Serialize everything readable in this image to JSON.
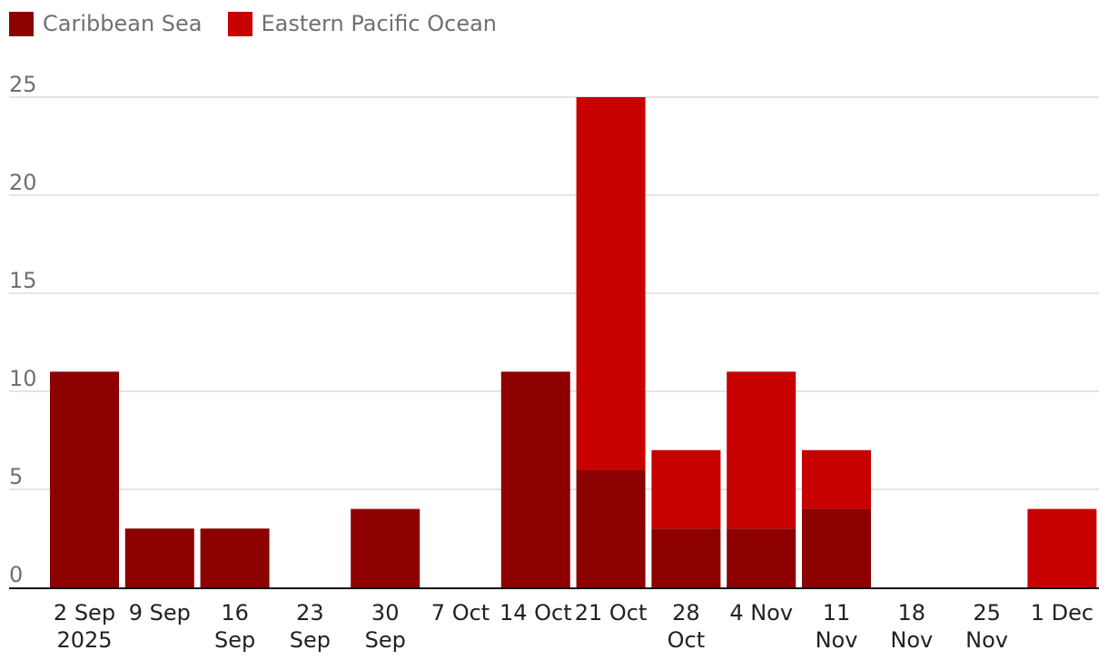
{
  "chart_data": {
    "type": "bar",
    "stacked": true,
    "title": "",
    "xlabel": "",
    "ylabel": "",
    "ylim": [
      0,
      25
    ],
    "yticks": [
      0,
      5,
      10,
      15,
      20,
      25
    ],
    "grid": true,
    "legend_position": "top-left",
    "categories": [
      [
        "2 Sep",
        "2025"
      ],
      [
        "9 Sep"
      ],
      [
        "16",
        "Sep"
      ],
      [
        "23",
        "Sep"
      ],
      [
        "30",
        "Sep"
      ],
      [
        "7 Oct"
      ],
      [
        "14 Oct"
      ],
      [
        "21 Oct"
      ],
      [
        "28",
        "Oct"
      ],
      [
        "4 Nov"
      ],
      [
        "11",
        "Nov"
      ],
      [
        "18",
        "Nov"
      ],
      [
        "25",
        "Nov"
      ],
      [
        "1 Dec"
      ]
    ],
    "series": [
      {
        "name": "Caribbean Sea",
        "color": "#8c0000",
        "values": [
          11,
          3,
          3,
          0,
          4,
          0,
          11,
          6,
          3,
          3,
          4,
          0,
          0,
          0
        ]
      },
      {
        "name": "Eastern Pacific Ocean",
        "color": "#c70000",
        "values": [
          0,
          0,
          0,
          0,
          0,
          0,
          0,
          19,
          4,
          8,
          3,
          0,
          0,
          4
        ]
      }
    ]
  }
}
